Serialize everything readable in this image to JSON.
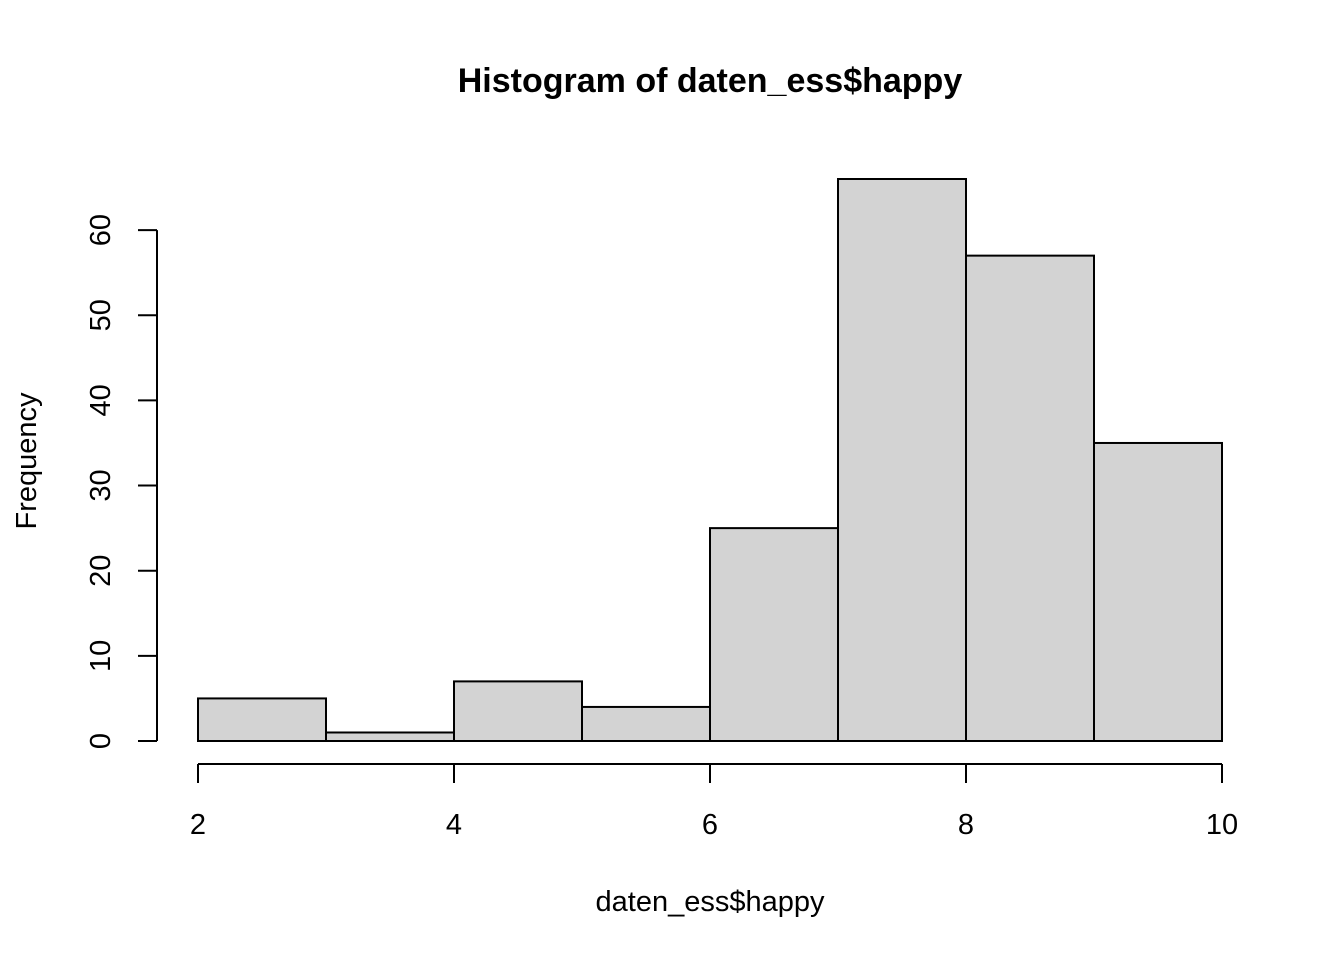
{
  "chart_data": {
    "type": "bar",
    "subtype": "histogram",
    "title": "Histogram of daten_ess$happy",
    "xlabel": "daten_ess$happy",
    "ylabel": "Frequency",
    "bins": [
      {
        "start": 2,
        "end": 3,
        "count": 5
      },
      {
        "start": 3,
        "end": 4,
        "count": 1
      },
      {
        "start": 4,
        "end": 5,
        "count": 7
      },
      {
        "start": 5,
        "end": 6,
        "count": 4
      },
      {
        "start": 6,
        "end": 7,
        "count": 25
      },
      {
        "start": 7,
        "end": 8,
        "count": 66
      },
      {
        "start": 8,
        "end": 9,
        "count": 57
      },
      {
        "start": 9,
        "end": 10,
        "count": 35
      }
    ],
    "xlim": [
      2,
      10
    ],
    "ylim": [
      0,
      66
    ],
    "x_ticks": [
      2,
      4,
      6,
      8,
      10
    ],
    "y_ticks": [
      0,
      10,
      20,
      30,
      40,
      50,
      60
    ],
    "grid": false,
    "bar_fill": "#d3d3d3",
    "bar_stroke": "#000000"
  }
}
